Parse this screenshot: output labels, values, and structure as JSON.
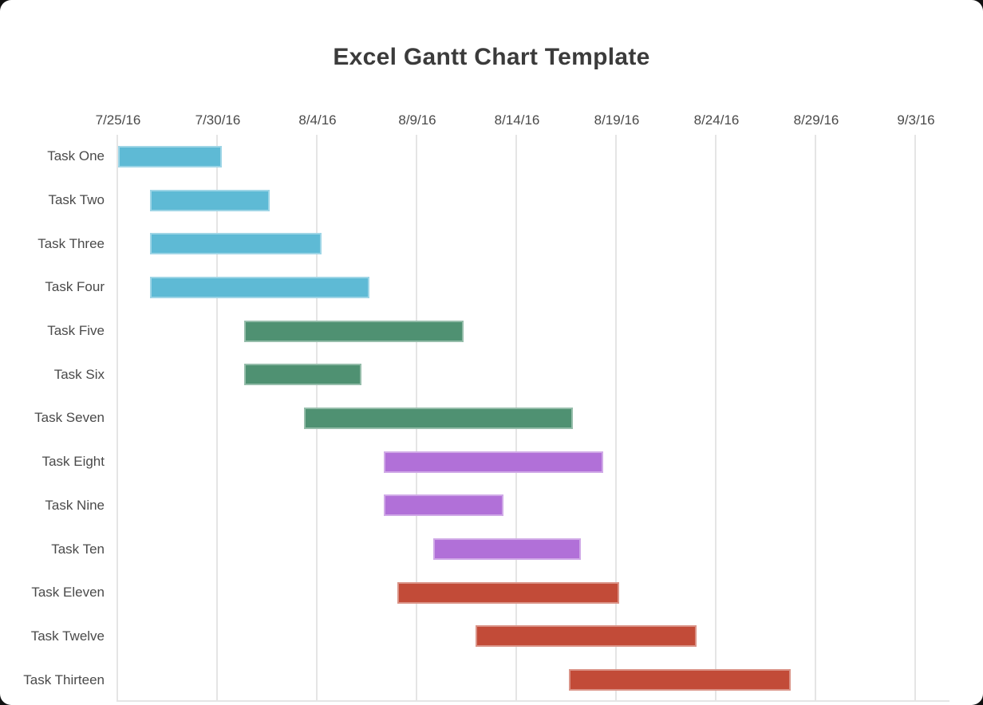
{
  "page": {
    "background_color": "#101010",
    "card_color": "#ffffff",
    "title_color": "#3b3b3b",
    "axis_text_color": "#4a4a4a",
    "gridline_color": "#e5e5e5"
  },
  "chart_data": {
    "type": "gantt",
    "title": "Excel Gantt Chart Template",
    "x_axis": {
      "origin_date": "7/25/16",
      "end_date": "9/3/16",
      "total_days": 40,
      "tick_interval_days": 5,
      "gridlines": true,
      "ticks": [
        {
          "label": "7/25/16",
          "day": 0
        },
        {
          "label": "7/30/16",
          "day": 5
        },
        {
          "label": "8/4/16",
          "day": 10
        },
        {
          "label": "8/9/16",
          "day": 15
        },
        {
          "label": "8/14/16",
          "day": 20
        },
        {
          "label": "8/19/16",
          "day": 25
        },
        {
          "label": "8/24/16",
          "day": 30
        },
        {
          "label": "8/29/16",
          "day": 35
        },
        {
          "label": "9/3/16",
          "day": 40
        }
      ]
    },
    "colors": {
      "blue": "#5EBAD5",
      "green": "#4F9172",
      "purple": "#B170D8",
      "red": "#C24B38"
    },
    "tasks": [
      {
        "label": "Task One",
        "color": "blue",
        "start_day": 0.0,
        "end_day": 5.2,
        "approx_start": "7/25/16",
        "approx_end": "7/30/16"
      },
      {
        "label": "Task Two",
        "color": "blue",
        "start_day": 1.6,
        "end_day": 7.6,
        "approx_start": "7/27/16",
        "approx_end": "8/2/16"
      },
      {
        "label": "Task Three",
        "color": "blue",
        "start_day": 1.6,
        "end_day": 10.2,
        "approx_start": "7/27/16",
        "approx_end": "8/4/16"
      },
      {
        "label": "Task Four",
        "color": "blue",
        "start_day": 1.6,
        "end_day": 12.6,
        "approx_start": "7/27/16",
        "approx_end": "8/7/16"
      },
      {
        "label": "Task Five",
        "color": "green",
        "start_day": 6.3,
        "end_day": 17.3,
        "approx_start": "7/31/16",
        "approx_end": "8/11/16"
      },
      {
        "label": "Task Six",
        "color": "green",
        "start_day": 6.3,
        "end_day": 12.2,
        "approx_start": "7/31/16",
        "approx_end": "8/6/16"
      },
      {
        "label": "Task Seven",
        "color": "green",
        "start_day": 9.3,
        "end_day": 22.8,
        "approx_start": "8/3/16",
        "approx_end": "8/17/16"
      },
      {
        "label": "Task Eight",
        "color": "purple",
        "start_day": 13.3,
        "end_day": 24.3,
        "approx_start": "8/7/16",
        "approx_end": "8/18/16"
      },
      {
        "label": "Task Nine",
        "color": "purple",
        "start_day": 13.3,
        "end_day": 19.3,
        "approx_start": "8/7/16",
        "approx_end": "8/13/16"
      },
      {
        "label": "Task Ten",
        "color": "purple",
        "start_day": 15.8,
        "end_day": 23.2,
        "approx_start": "8/10/16",
        "approx_end": "8/17/16"
      },
      {
        "label": "Task Eleven",
        "color": "red",
        "start_day": 14.0,
        "end_day": 25.1,
        "approx_start": "8/8/16",
        "approx_end": "8/19/16"
      },
      {
        "label": "Task Twelve",
        "color": "red",
        "start_day": 17.9,
        "end_day": 29.0,
        "approx_start": "8/12/16",
        "approx_end": "8/23/16"
      },
      {
        "label": "Task Thirteen",
        "color": "red",
        "start_day": 22.6,
        "end_day": 33.7,
        "approx_start": "8/17/16",
        "approx_end": "8/28/16"
      }
    ]
  }
}
